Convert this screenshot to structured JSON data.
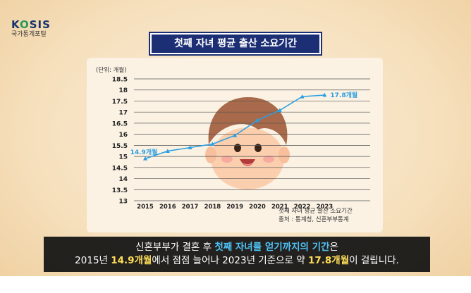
{
  "brand": {
    "logo_text": "KOSIS",
    "logo_text_a": "K",
    "logo_text_o": "O",
    "logo_text_b": "SIS",
    "subtitle": "국가통계포털"
  },
  "title": "첫째 자녀 평균 출산 소요기간",
  "chart_data": {
    "type": "line",
    "title": "첫째 자녀 평균 출산 소요기간",
    "unit_label": "(단위: 개월)",
    "x": [
      "2015",
      "2016",
      "2017",
      "2018",
      "2019",
      "2020",
      "2021",
      "2022",
      "2023"
    ],
    "series": [
      {
        "values": [
          14.9,
          15.24,
          15.4,
          15.56,
          15.95,
          16.63,
          17.08,
          17.7,
          17.77
        ]
      }
    ],
    "yticks": [
      "18.5",
      "18",
      "17.5",
      "17",
      "16.5",
      "16",
      "15.5",
      "15",
      "14.5",
      "14",
      "13.5",
      "13"
    ],
    "ylim": [
      13,
      18.5
    ],
    "grid": true,
    "annotations": [
      {
        "x": "2015",
        "label": "14.9개월"
      },
      {
        "x": "2023",
        "label": "17.8개월"
      }
    ],
    "color": "#2a9fe0"
  },
  "source": {
    "line1": "첫째 자녀 평균 출산 소요기간",
    "line2": "출처 : 통계청, 신혼부부통계"
  },
  "caption": {
    "line1_a": "신혼부부가 결혼 후 ",
    "line1_hl": "첫째 자녀를 얻기까지의 기간",
    "line1_b": "은",
    "line2_a": "2015년 ",
    "line2_b1": "14.9개월",
    "line2_c": "에서 점점 늘어나 2023년 기준으로 약 ",
    "line2_b2": "17.8개월",
    "line2_d": "이 걸립니다."
  }
}
